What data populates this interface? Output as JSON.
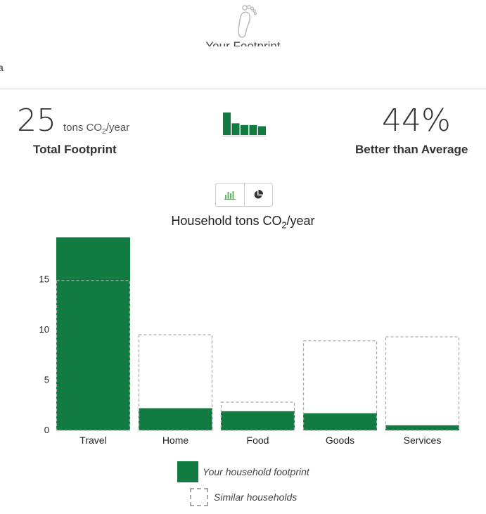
{
  "header": {
    "title": "Your Footprint",
    "edge_text": "a"
  },
  "summary": {
    "total_value": "25",
    "unit_prefix": "tons CO",
    "unit_sub": "2",
    "unit_suffix": "/year",
    "total_label": "Total Footprint",
    "comparison_value": "44%",
    "comparison_label": "Better than Average"
  },
  "chart_toggle": {
    "options": [
      "bar-chart-icon",
      "pie-chart-icon"
    ],
    "active": "bar-chart-icon"
  },
  "chart_data": {
    "type": "bar",
    "title_prefix": "Household tons CO",
    "title_sub": "2",
    "title_suffix": "/year",
    "categories": [
      "Travel",
      "Home",
      "Food",
      "Goods",
      "Services"
    ],
    "series": [
      {
        "name": "Your household footprint",
        "values": [
          19.2,
          2.2,
          1.9,
          1.7,
          0.5
        ],
        "color": "#127b41",
        "style": "solid"
      },
      {
        "name": "Similar households",
        "values": [
          14.9,
          9.5,
          2.8,
          8.9,
          9.3
        ],
        "color": "#aaaaaa",
        "style": "dashed"
      }
    ],
    "yticks": [
      0,
      5,
      10,
      15
    ],
    "ylim": [
      0,
      19.2
    ],
    "grid": false,
    "legend_position": "bottom-center"
  },
  "mini_chart": {
    "values": [
      19.2,
      10,
      8.5,
      8.5,
      7.5
    ],
    "color": "#127b41"
  }
}
